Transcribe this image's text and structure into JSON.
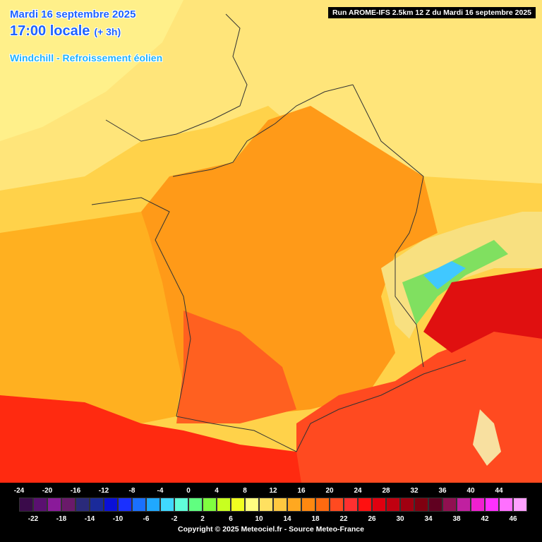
{
  "header": {
    "date": "Mardi 16 septembre 2025",
    "time": "17:00 locale",
    "offset": "(+ 3h)",
    "parameter": "Windchill - Refroissement éolien"
  },
  "run_label": "Run AROME-IFS 2.5km 12 Z du Mardi 16 septembre 2025",
  "legend": {
    "top_labels": [
      "-24",
      "-20",
      "-16",
      "-12",
      "-8",
      "-4",
      "0",
      "4",
      "8",
      "12",
      "16",
      "20",
      "24",
      "28",
      "32",
      "36",
      "40",
      "44"
    ],
    "bottom_labels": [
      "-22",
      "-18",
      "-14",
      "-10",
      "-6",
      "-2",
      "2",
      "6",
      "10",
      "14",
      "18",
      "22",
      "26",
      "30",
      "34",
      "38",
      "42",
      "46"
    ],
    "colors": [
      "#3a0a4a",
      "#5a1070",
      "#8a1a9a",
      "#6a1a6a",
      "#2a2a7a",
      "#1a2a9a",
      "#0a10d8",
      "#1a30ff",
      "#1a70ff",
      "#20a8ff",
      "#40d8ff",
      "#60ffd8",
      "#60ff80",
      "#80ff40",
      "#c8ff20",
      "#f0ff20",
      "#ffff80",
      "#ffe060",
      "#ffc840",
      "#ffa820",
      "#ff8810",
      "#ff6a10",
      "#ff4a20",
      "#ff3030",
      "#ff1010",
      "#e00010",
      "#c00010",
      "#a00010",
      "#800010",
      "#600020",
      "#901050",
      "#c020a0",
      "#f020d0",
      "#ff30ff",
      "#ff70ff",
      "#ffa0ff"
    ]
  },
  "copyright": "Copyright © 2025 Meteociel.fr - Source Meteo-France"
}
